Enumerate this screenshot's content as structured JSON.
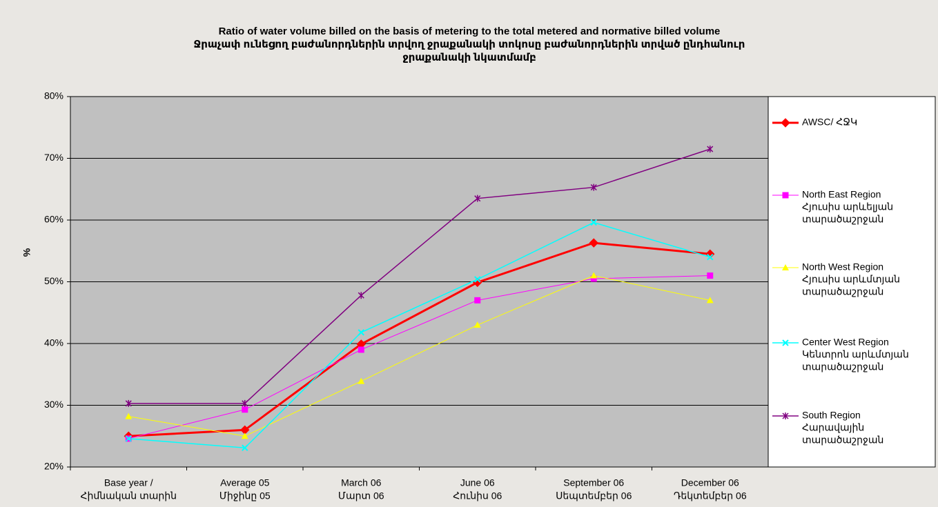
{
  "chart_data": {
    "type": "line",
    "title": [
      "Ratio of water volume billed on the basis of metering to the total metered and normative billed volume",
      "Ջրաչափ ունեցող բաժանորդներին տրվող ջրաքանակի տոկոսը բաժանորդներին տրված ընդհանուր",
      "ջրաքանակի նկատմամբ"
    ],
    "y_label": "%",
    "categories": [
      [
        "Base year /",
        "Հիմնական տարին"
      ],
      [
        "Average 05",
        "Միջինը 05"
      ],
      [
        "March 06",
        "Մարտ 06"
      ],
      [
        "June 06",
        "Հունիս 06"
      ],
      [
        "September 06",
        "Սեպտեմբեր 06"
      ],
      [
        "December 06",
        "Դեկտեմբեր 06"
      ]
    ],
    "ylim": [
      20,
      80
    ],
    "yticks": [
      {
        "value": 20,
        "label": "20%"
      },
      {
        "value": 30,
        "label": "30%"
      },
      {
        "value": 40,
        "label": "40%"
      },
      {
        "value": 50,
        "label": "50%"
      },
      {
        "value": 60,
        "label": "60%"
      },
      {
        "value": 70,
        "label": "70%"
      },
      {
        "value": 80,
        "label": "80%"
      }
    ],
    "grid": true,
    "legend": "right",
    "series": [
      {
        "name": [
          "AWSC/ ՀՋԿ"
        ],
        "color": "#ff0000",
        "marker": "diamond",
        "width": 3,
        "values": [
          25.0,
          26.0,
          39.9,
          49.9,
          56.3,
          54.5
        ]
      },
      {
        "name": [
          "North East Region",
          "Հյուսիս արևելյան",
          "տարածաշրջան"
        ],
        "color": "#ff00ff",
        "marker": "square",
        "width": 1,
        "values": [
          24.6,
          29.3,
          39.0,
          47.0,
          50.5,
          51.0
        ]
      },
      {
        "name": [
          "North West Region",
          "Հյուսիս արևմտյան",
          "տարածաշրջան"
        ],
        "color": "#ffff00",
        "marker": "triangle",
        "width": 1,
        "values": [
          28.2,
          25.0,
          33.9,
          43.0,
          51.0,
          47.0
        ]
      },
      {
        "name": [
          "Center West Region",
          "Կենտրոն արևմտյան",
          "տարածաշրջան"
        ],
        "color": "#00ffff",
        "marker": "x",
        "width": 1.5,
        "values": [
          24.6,
          23.1,
          41.8,
          50.4,
          59.6,
          54.0
        ]
      },
      {
        "name": [
          "South Region",
          "Հարավային",
          "տարածաշրջան"
        ],
        "color": "#800080",
        "marker": "star",
        "width": 1.5,
        "values": [
          30.3,
          30.3,
          47.8,
          63.5,
          65.3,
          71.5
        ]
      }
    ]
  }
}
